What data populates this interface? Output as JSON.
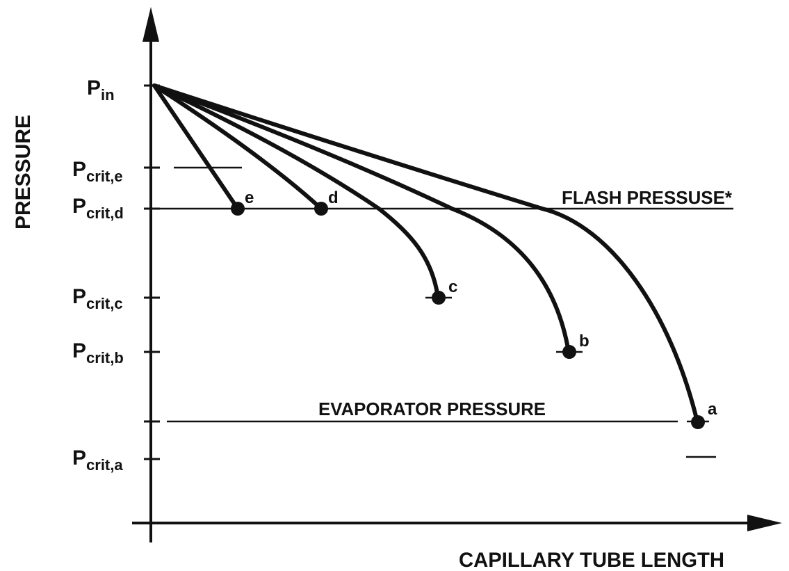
{
  "axes": {
    "y_label": "PRESSURE",
    "x_label": "CAPILLARY TUBE LENGTH"
  },
  "pressure_labels": [
    {
      "main": "P",
      "sub": "in"
    },
    {
      "main": "P",
      "sub": "crit,e"
    },
    {
      "main": "P",
      "sub": "crit,d"
    },
    {
      "main": "P",
      "sub": "crit,c"
    },
    {
      "main": "P",
      "sub": "crit,b"
    },
    {
      "main": "P",
      "sub": "crit,a"
    }
  ],
  "lines": {
    "flash": "FLASH PRESSUSE*",
    "evaporator": "EVAPORATOR PRESSURE"
  },
  "curve_labels": [
    "e",
    "d",
    "c",
    "b",
    "a"
  ]
}
